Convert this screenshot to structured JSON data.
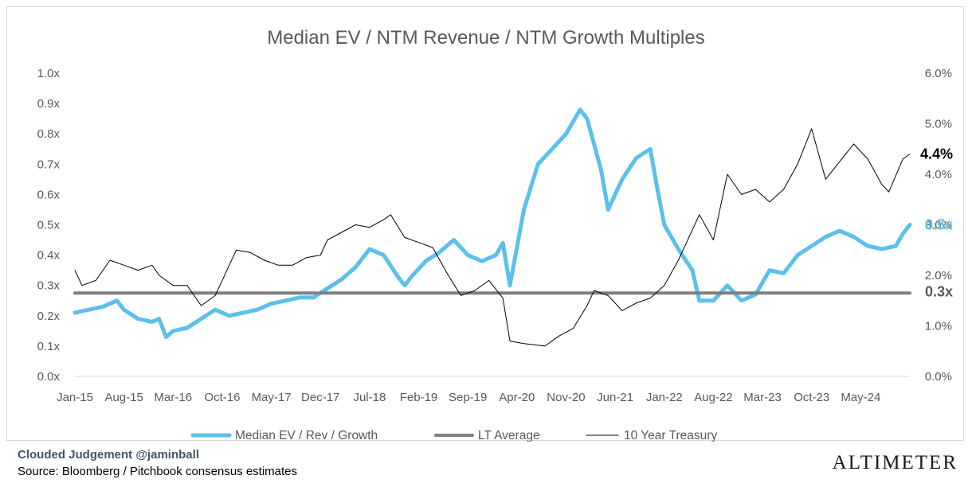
{
  "chart_data": {
    "type": "line",
    "title": "Median EV / NTM Revenue / NTM Growth Multiples",
    "x_ticks": [
      "Jan-15",
      "Aug-15",
      "Mar-16",
      "Oct-16",
      "May-17",
      "Dec-17",
      "Jul-18",
      "Feb-19",
      "Sep-19",
      "Apr-20",
      "Nov-20",
      "Jun-21",
      "Jan-22",
      "Aug-22",
      "Mar-23",
      "Oct-23",
      "May-24"
    ],
    "x_range": [
      "2015-01",
      "2024-12"
    ],
    "y_left": {
      "ticks": [
        "0.0x",
        "0.1x",
        "0.2x",
        "0.3x",
        "0.4x",
        "0.5x",
        "0.6x",
        "0.7x",
        "0.8x",
        "0.9x",
        "1.0x"
      ],
      "ylim": [
        0,
        1.0
      ]
    },
    "y_right": {
      "ticks": [
        "0.0%",
        "1.0%",
        "2.0%",
        "3.0%",
        "4.0%",
        "5.0%",
        "6.0%"
      ],
      "ylim": [
        0,
        6.0
      ]
    },
    "grid": false,
    "legend_position": "bottom",
    "series": [
      {
        "name": "Median EV / Rev / Growth",
        "axis": "left",
        "color": "#5bc0eb",
        "points": [
          [
            "2015-01",
            0.21
          ],
          [
            "2015-03",
            0.22
          ],
          [
            "2015-05",
            0.23
          ],
          [
            "2015-07",
            0.25
          ],
          [
            "2015-08",
            0.22
          ],
          [
            "2015-10",
            0.19
          ],
          [
            "2015-12",
            0.18
          ],
          [
            "2016-01",
            0.19
          ],
          [
            "2016-02",
            0.13
          ],
          [
            "2016-03",
            0.15
          ],
          [
            "2016-05",
            0.16
          ],
          [
            "2016-07",
            0.19
          ],
          [
            "2016-09",
            0.22
          ],
          [
            "2016-11",
            0.2
          ],
          [
            "2017-01",
            0.21
          ],
          [
            "2017-03",
            0.22
          ],
          [
            "2017-05",
            0.24
          ],
          [
            "2017-07",
            0.25
          ],
          [
            "2017-09",
            0.26
          ],
          [
            "2017-11",
            0.26
          ],
          [
            "2018-01",
            0.29
          ],
          [
            "2018-03",
            0.32
          ],
          [
            "2018-05",
            0.36
          ],
          [
            "2018-07",
            0.42
          ],
          [
            "2018-09",
            0.4
          ],
          [
            "2018-11",
            0.33
          ],
          [
            "2018-12",
            0.3
          ],
          [
            "2019-01",
            0.33
          ],
          [
            "2019-03",
            0.38
          ],
          [
            "2019-05",
            0.41
          ],
          [
            "2019-07",
            0.45
          ],
          [
            "2019-09",
            0.4
          ],
          [
            "2019-11",
            0.38
          ],
          [
            "2020-01",
            0.4
          ],
          [
            "2020-02",
            0.44
          ],
          [
            "2020-03",
            0.3
          ],
          [
            "2020-05",
            0.55
          ],
          [
            "2020-07",
            0.7
          ],
          [
            "2020-09",
            0.75
          ],
          [
            "2020-11",
            0.8
          ],
          [
            "2021-01",
            0.88
          ],
          [
            "2021-02",
            0.85
          ],
          [
            "2021-04",
            0.68
          ],
          [
            "2021-05",
            0.55
          ],
          [
            "2021-07",
            0.65
          ],
          [
            "2021-09",
            0.72
          ],
          [
            "2021-11",
            0.75
          ],
          [
            "2021-12",
            0.62
          ],
          [
            "2022-01",
            0.5
          ],
          [
            "2022-03",
            0.42
          ],
          [
            "2022-05",
            0.35
          ],
          [
            "2022-06",
            0.25
          ],
          [
            "2022-08",
            0.25
          ],
          [
            "2022-10",
            0.3
          ],
          [
            "2022-12",
            0.25
          ],
          [
            "2023-02",
            0.27
          ],
          [
            "2023-04",
            0.35
          ],
          [
            "2023-06",
            0.34
          ],
          [
            "2023-08",
            0.4
          ],
          [
            "2023-10",
            0.43
          ],
          [
            "2023-12",
            0.46
          ],
          [
            "2024-02",
            0.48
          ],
          [
            "2024-04",
            0.46
          ],
          [
            "2024-06",
            0.43
          ],
          [
            "2024-08",
            0.42
          ],
          [
            "2024-10",
            0.43
          ],
          [
            "2024-11",
            0.47
          ],
          [
            "2024-12",
            0.5
          ]
        ]
      },
      {
        "name": "LT Average",
        "axis": "left",
        "color": "#7f7f7f",
        "points": [
          [
            "2015-01",
            0.275
          ],
          [
            "2024-12",
            0.275
          ]
        ]
      },
      {
        "name": "10 Year Treasury",
        "axis": "right",
        "color": "#000000",
        "points": [
          [
            "2015-01",
            2.1
          ],
          [
            "2015-02",
            1.8
          ],
          [
            "2015-04",
            1.9
          ],
          [
            "2015-06",
            2.3
          ],
          [
            "2015-08",
            2.2
          ],
          [
            "2015-10",
            2.1
          ],
          [
            "2015-12",
            2.2
          ],
          [
            "2016-01",
            2.0
          ],
          [
            "2016-03",
            1.8
          ],
          [
            "2016-05",
            1.8
          ],
          [
            "2016-07",
            1.4
          ],
          [
            "2016-09",
            1.6
          ],
          [
            "2016-11",
            2.2
          ],
          [
            "2016-12",
            2.5
          ],
          [
            "2017-02",
            2.45
          ],
          [
            "2017-04",
            2.3
          ],
          [
            "2017-06",
            2.2
          ],
          [
            "2017-08",
            2.2
          ],
          [
            "2017-10",
            2.35
          ],
          [
            "2017-12",
            2.4
          ],
          [
            "2018-01",
            2.7
          ],
          [
            "2018-03",
            2.85
          ],
          [
            "2018-05",
            3.0
          ],
          [
            "2018-07",
            2.95
          ],
          [
            "2018-09",
            3.1
          ],
          [
            "2018-10",
            3.2
          ],
          [
            "2018-12",
            2.75
          ],
          [
            "2019-02",
            2.65
          ],
          [
            "2019-04",
            2.55
          ],
          [
            "2019-06",
            2.05
          ],
          [
            "2019-08",
            1.6
          ],
          [
            "2019-10",
            1.7
          ],
          [
            "2019-12",
            1.9
          ],
          [
            "2020-02",
            1.55
          ],
          [
            "2020-03",
            0.7
          ],
          [
            "2020-05",
            0.65
          ],
          [
            "2020-08",
            0.6
          ],
          [
            "2020-10",
            0.8
          ],
          [
            "2020-12",
            0.95
          ],
          [
            "2021-02",
            1.4
          ],
          [
            "2021-03",
            1.7
          ],
          [
            "2021-05",
            1.6
          ],
          [
            "2021-07",
            1.3
          ],
          [
            "2021-09",
            1.45
          ],
          [
            "2021-11",
            1.55
          ],
          [
            "2022-01",
            1.8
          ],
          [
            "2022-03",
            2.3
          ],
          [
            "2022-05",
            2.9
          ],
          [
            "2022-06",
            3.2
          ],
          [
            "2022-08",
            2.7
          ],
          [
            "2022-10",
            4.0
          ],
          [
            "2022-12",
            3.6
          ],
          [
            "2023-02",
            3.7
          ],
          [
            "2023-04",
            3.45
          ],
          [
            "2023-06",
            3.7
          ],
          [
            "2023-08",
            4.2
          ],
          [
            "2023-10",
            4.9
          ],
          [
            "2023-12",
            3.9
          ],
          [
            "2024-02",
            4.25
          ],
          [
            "2024-04",
            4.6
          ],
          [
            "2024-06",
            4.3
          ],
          [
            "2024-08",
            3.8
          ],
          [
            "2024-09",
            3.65
          ],
          [
            "2024-11",
            4.3
          ],
          [
            "2024-12",
            4.4
          ]
        ]
      }
    ],
    "end_labels": [
      {
        "text": "4.4%",
        "axis": "right",
        "value": 4.4,
        "color": "#000000"
      },
      {
        "text": "0.5x",
        "axis": "left",
        "value": 0.5,
        "color": "#5bc0eb"
      },
      {
        "text": "0.3x",
        "axis": "left",
        "value": 0.28,
        "color": "#595959"
      }
    ]
  },
  "footer": {
    "credit": "Clouded Judgement @jaminball",
    "source": "Source: Bloomberg / Pitchbook consensus estimates",
    "brand": "ALTIMETER"
  }
}
